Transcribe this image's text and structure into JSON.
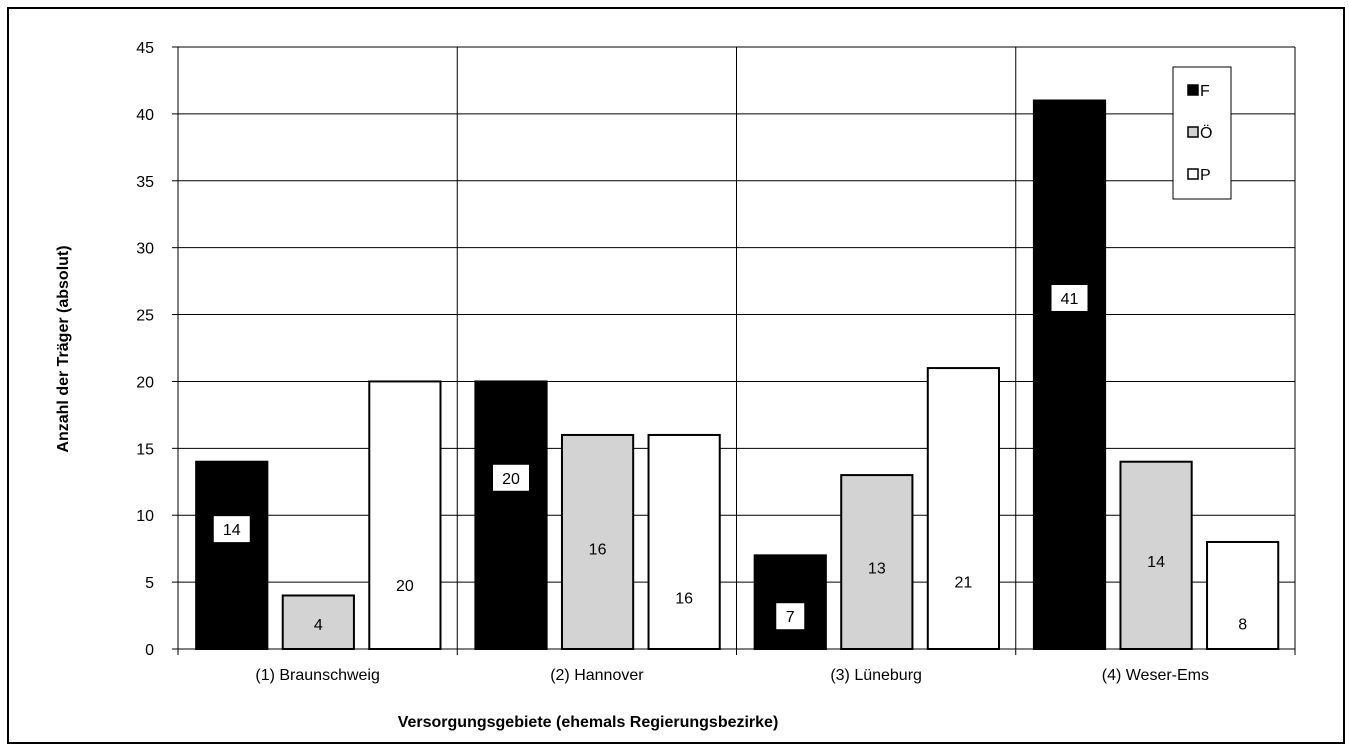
{
  "chart_data": {
    "type": "bar",
    "categories": [
      "(1) Braunschweig",
      "(2) Hannover",
      "(3) Lüneburg",
      "(4) Weser-Ems"
    ],
    "series": [
      {
        "name": "F",
        "values": [
          14,
          20,
          7,
          41
        ],
        "color": "#000000"
      },
      {
        "name": "Ö",
        "values": [
          4,
          16,
          13,
          14
        ],
        "color": "#d3d3d3"
      },
      {
        "name": "P",
        "values": [
          20,
          16,
          21,
          8
        ],
        "color": "#ffffff"
      }
    ],
    "xlabel": "Versorgungsgebiete (ehemals Regierungsbezirke)",
    "ylabel": "Anzahl der Träger (absolut)",
    "ylim": [
      0,
      45
    ],
    "yticks": [
      0,
      5,
      10,
      15,
      20,
      25,
      30,
      35,
      40,
      45
    ],
    "grid": "horizontal and vertical",
    "legend": "top-right",
    "data_labels": true
  }
}
